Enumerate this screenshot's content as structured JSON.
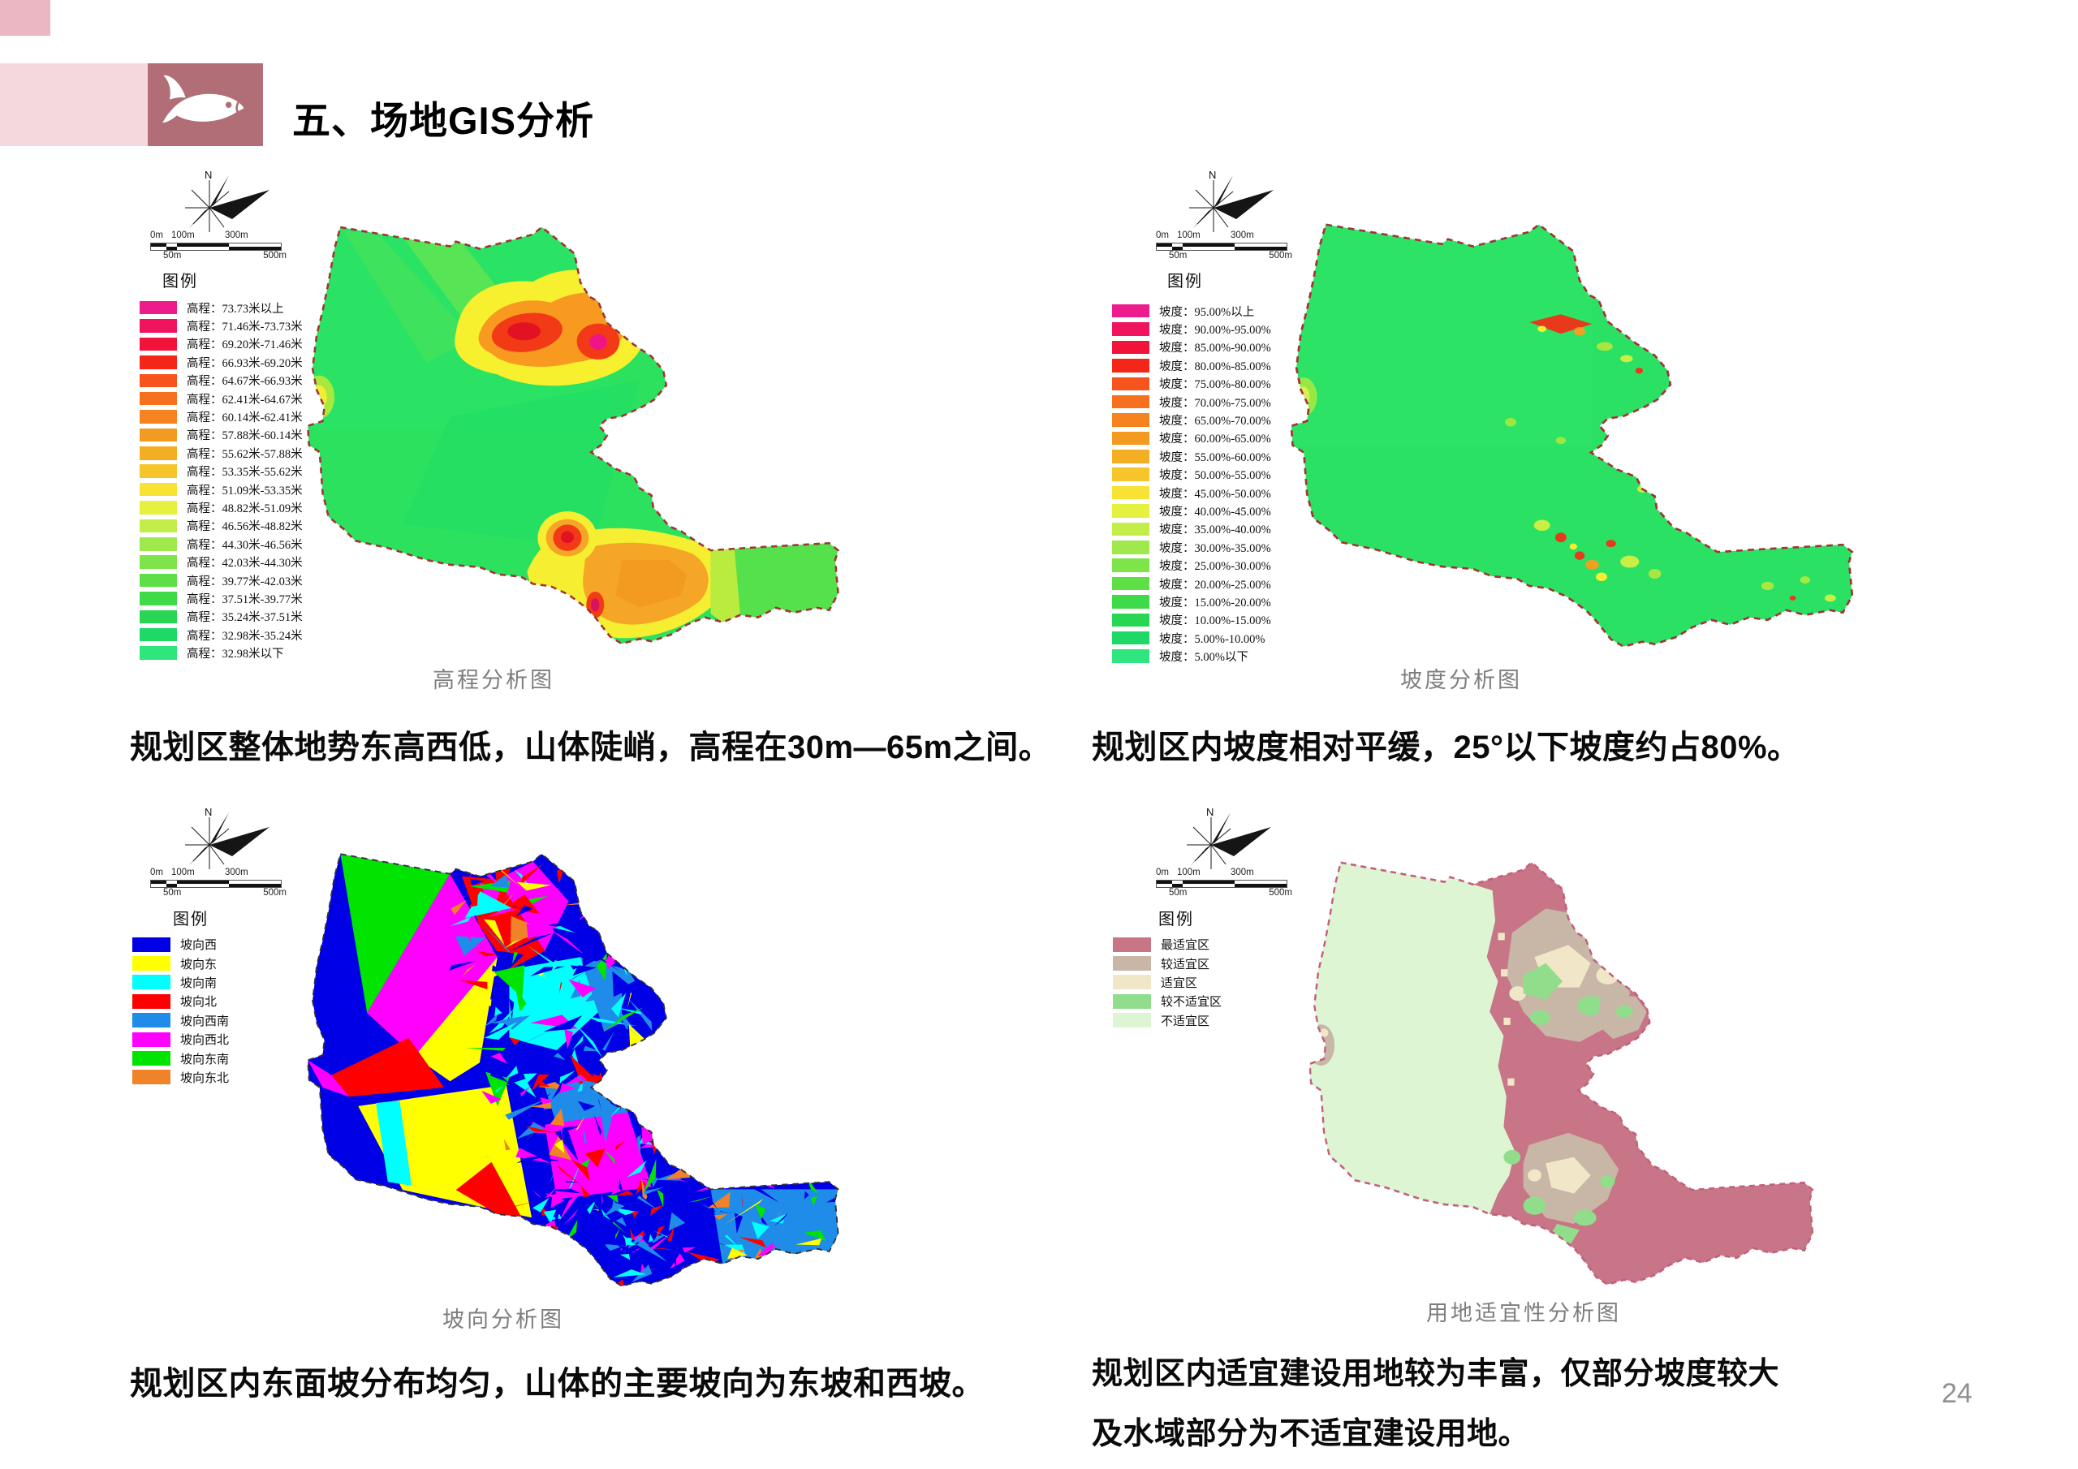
{
  "page": {
    "number": "24"
  },
  "header": {
    "title": "五、场地GIS分析"
  },
  "compass_label": "N",
  "legend_title": "图例",
  "scalebar": {
    "top_labels": [
      "0m",
      "100m",
      "300m"
    ],
    "bottom_labels": [
      "50m",
      "500m"
    ]
  },
  "maps": {
    "elevation": {
      "caption": "高程分析图",
      "description": "规划区整体地势东高西低，山体陡峭，高程在30m—65m之间。",
      "legend": [
        {
          "label": "高程：73.73米以上",
          "color": "#EE1B8C"
        },
        {
          "label": "高程：71.46米-73.73米",
          "color": "#F0145F"
        },
        {
          "label": "高程：69.20米-71.46米",
          "color": "#F2133B"
        },
        {
          "label": "高程：66.93米-69.20米",
          "color": "#F42617"
        },
        {
          "label": "高程：64.67米-66.93米",
          "color": "#F6541C"
        },
        {
          "label": "高程：62.41米-64.67米",
          "color": "#F7701D"
        },
        {
          "label": "高程：60.14米-62.41米",
          "color": "#F5831F"
        },
        {
          "label": "高程：57.88米-60.14米",
          "color": "#F39A21"
        },
        {
          "label": "高程：55.62米-57.88米",
          "color": "#F4AE24"
        },
        {
          "label": "高程：53.35米-55.62米",
          "color": "#F6C52A"
        },
        {
          "label": "高程：51.09米-53.35米",
          "color": "#F8E233"
        },
        {
          "label": "高程：48.82米-51.09米",
          "color": "#E4F13E"
        },
        {
          "label": "高程：46.56米-48.82米",
          "color": "#C3ED49"
        },
        {
          "label": "高程：44.30米-46.56米",
          "color": "#A0E94C"
        },
        {
          "label": "高程：42.03米-44.30米",
          "color": "#7FE44A"
        },
        {
          "label": "高程：39.77米-42.03米",
          "color": "#5EDF46"
        },
        {
          "label": "高程：37.51米-39.77米",
          "color": "#3FDA47"
        },
        {
          "label": "高程：35.24米-37.51米",
          "color": "#27D753"
        },
        {
          "label": "高程：32.98米-35.24米",
          "color": "#1ED965"
        },
        {
          "label": "高程：32.98米以下",
          "color": "#2FE57E"
        }
      ]
    },
    "slope": {
      "caption": "坡度分析图",
      "description": "规划区内坡度相对平缓，25°以下坡度约占80%。",
      "legend": [
        {
          "label": "坡度：95.00%以上",
          "color": "#EE1B8C"
        },
        {
          "label": "坡度：90.00%-95.00%",
          "color": "#F0145F"
        },
        {
          "label": "坡度：85.00%-90.00%",
          "color": "#F2133B"
        },
        {
          "label": "坡度：80.00%-85.00%",
          "color": "#F42617"
        },
        {
          "label": "坡度：75.00%-80.00%",
          "color": "#F6541C"
        },
        {
          "label": "坡度：70.00%-75.00%",
          "color": "#F7701D"
        },
        {
          "label": "坡度：65.00%-70.00%",
          "color": "#F5831F"
        },
        {
          "label": "坡度：60.00%-65.00%",
          "color": "#F39A21"
        },
        {
          "label": "坡度：55.00%-60.00%",
          "color": "#F4AE24"
        },
        {
          "label": "坡度：50.00%-55.00%",
          "color": "#F6C52A"
        },
        {
          "label": "坡度：45.00%-50.00%",
          "color": "#F8E233"
        },
        {
          "label": "坡度：40.00%-45.00%",
          "color": "#E4F13E"
        },
        {
          "label": "坡度：35.00%-40.00%",
          "color": "#C3ED49"
        },
        {
          "label": "坡度：30.00%-35.00%",
          "color": "#A0E94C"
        },
        {
          "label": "坡度：25.00%-30.00%",
          "color": "#7FE44A"
        },
        {
          "label": "坡度：20.00%-25.00%",
          "color": "#5EDF46"
        },
        {
          "label": "坡度：15.00%-20.00%",
          "color": "#3FDA47"
        },
        {
          "label": "坡度：10.00%-15.00%",
          "color": "#27D753"
        },
        {
          "label": "坡度：5.00%-10.00%",
          "color": "#1ED965"
        },
        {
          "label": "坡度：5.00%以下",
          "color": "#2FE57E"
        }
      ]
    },
    "aspect": {
      "caption": "坡向分析图",
      "description": "规划区内东面坡分布均匀，山体的主要坡向为东坡和西坡。",
      "legend": [
        {
          "label": "坡向西",
          "color": "#0000E6"
        },
        {
          "label": "坡向东",
          "color": "#FFFF00"
        },
        {
          "label": "坡向南",
          "color": "#00FFFF"
        },
        {
          "label": "坡向北",
          "color": "#FF0000"
        },
        {
          "label": "坡向西南",
          "color": "#1E8CE8"
        },
        {
          "label": "坡向西北",
          "color": "#FF00FF"
        },
        {
          "label": "坡向东南",
          "color": "#00E400"
        },
        {
          "label": "坡向东北",
          "color": "#F08228"
        }
      ]
    },
    "suitability": {
      "caption": "用地适宜性分析图",
      "description": "规划区内适宜建设用地较为丰富，仅部分坡度较大及水域部分为不适宜建设用地。",
      "legend": [
        {
          "label": "最适宜区",
          "color": "#C97588"
        },
        {
          "label": "较适宜区",
          "color": "#C8B7A7"
        },
        {
          "label": "适宜区",
          "color": "#F1E7C8"
        },
        {
          "label": "较不适宜区",
          "color": "#90DE8B"
        },
        {
          "label": "不适宜区",
          "color": "#DDF5D3"
        }
      ]
    }
  }
}
